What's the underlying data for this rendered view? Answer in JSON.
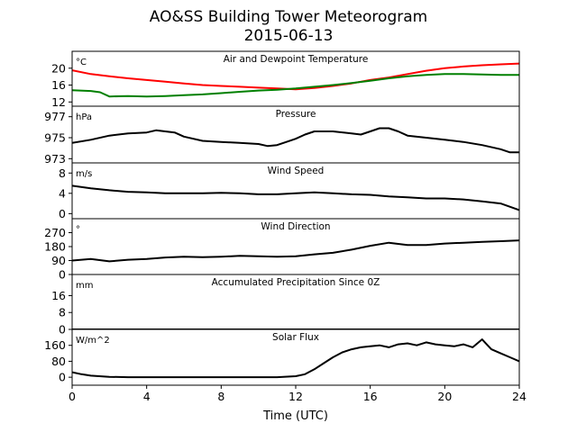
{
  "figure": {
    "title": "AO&SS Building Tower Meteorogram",
    "subtitle": "2015-06-13",
    "xlabel": "Time (UTC)"
  },
  "chart_data": [
    {
      "type": "line",
      "title": "Air and Dewpoint Temperature",
      "unit_label": "°C",
      "xlim": [
        0,
        24
      ],
      "ylim": [
        11,
        24
      ],
      "yticks": [
        12,
        16,
        20
      ],
      "colors": {
        "air": "#ff0000",
        "dewpoint": "#008000"
      },
      "series": [
        {
          "key": "air",
          "x": [
            0,
            1,
            2,
            3,
            4,
            5,
            6,
            7,
            8,
            9,
            10,
            11,
            12,
            13,
            14,
            15,
            16,
            17,
            18,
            19,
            20,
            21,
            22,
            23,
            24
          ],
          "y": [
            19.5,
            18.6,
            18.1,
            17.6,
            17.2,
            16.8,
            16.4,
            16.0,
            15.8,
            15.6,
            15.4,
            15.2,
            15.0,
            15.3,
            15.8,
            16.4,
            17.2,
            17.8,
            18.6,
            19.4,
            20.0,
            20.4,
            20.7,
            20.9,
            21.1
          ]
        },
        {
          "key": "dewpoint",
          "x": [
            0,
            1,
            1.5,
            2,
            3,
            4,
            5,
            6,
            7,
            8,
            9,
            10,
            11,
            12,
            13,
            14,
            15,
            16,
            17,
            18,
            19,
            20,
            21,
            22,
            23,
            24
          ],
          "y": [
            14.8,
            14.6,
            14.3,
            13.3,
            13.4,
            13.3,
            13.4,
            13.6,
            13.8,
            14.1,
            14.4,
            14.7,
            14.9,
            15.2,
            15.6,
            16.0,
            16.5,
            17.0,
            17.6,
            18.1,
            18.4,
            18.6,
            18.6,
            18.5,
            18.4,
            18.4
          ]
        }
      ]
    },
    {
      "type": "line",
      "title": "Pressure",
      "unit_label": "hPa",
      "xlim": [
        0,
        24
      ],
      "ylim": [
        972.6,
        978.0
      ],
      "yticks": [
        973,
        975,
        977
      ],
      "series": [
        {
          "key": "pressure",
          "x": [
            0,
            1,
            2,
            3,
            4,
            4.5,
            5,
            5.5,
            6,
            7,
            8,
            9,
            10,
            10.5,
            11,
            11.5,
            12,
            12.5,
            13,
            14,
            15,
            15.5,
            16,
            16.5,
            17,
            17.5,
            18,
            19,
            20,
            21,
            22,
            23,
            23.5,
            24
          ],
          "y": [
            974.5,
            974.8,
            975.2,
            975.4,
            975.5,
            975.7,
            975.6,
            975.5,
            975.1,
            974.7,
            974.6,
            974.5,
            974.4,
            974.2,
            974.3,
            974.6,
            974.9,
            975.3,
            975.6,
            975.6,
            975.4,
            975.3,
            975.6,
            975.9,
            975.9,
            975.6,
            975.2,
            975.0,
            974.8,
            974.6,
            974.3,
            973.9,
            973.6,
            973.6
          ]
        }
      ]
    },
    {
      "type": "line",
      "title": "Wind Speed",
      "unit_label": "m/s",
      "xlim": [
        0,
        24
      ],
      "ylim": [
        -1,
        10
      ],
      "yticks": [
        0,
        4,
        8
      ],
      "series": [
        {
          "key": "wind_speed",
          "x": [
            0,
            1,
            2,
            3,
            4,
            5,
            6,
            7,
            8,
            9,
            10,
            11,
            12,
            13,
            14,
            15,
            16,
            17,
            18,
            19,
            20,
            21,
            22,
            23,
            24
          ],
          "y": [
            5.5,
            5.0,
            4.6,
            4.3,
            4.2,
            4.0,
            4.0,
            4.0,
            4.1,
            4.0,
            3.8,
            3.8,
            4.0,
            4.2,
            4.0,
            3.8,
            3.7,
            3.4,
            3.2,
            3.0,
            3.0,
            2.8,
            2.4,
            2.0,
            0.7
          ]
        }
      ]
    },
    {
      "type": "line",
      "title": "Wind Direction",
      "unit_label": "°",
      "xlim": [
        0,
        24
      ],
      "ylim": [
        0,
        360
      ],
      "yticks": [
        0,
        90,
        180,
        270
      ],
      "series": [
        {
          "key": "wind_direction",
          "x": [
            0,
            1,
            2,
            3,
            4,
            5,
            6,
            7,
            8,
            9,
            10,
            11,
            12,
            13,
            14,
            15,
            16,
            17,
            18,
            19,
            20,
            21,
            22,
            23,
            24
          ],
          "y": [
            90,
            100,
            85,
            95,
            100,
            110,
            115,
            112,
            115,
            120,
            118,
            115,
            118,
            130,
            140,
            160,
            185,
            205,
            190,
            190,
            200,
            205,
            210,
            215,
            220
          ]
        }
      ]
    },
    {
      "type": "line",
      "title": "Accumulated Precipitation Since 0Z",
      "unit_label": "mm",
      "xlim": [
        0,
        24
      ],
      "ylim": [
        0,
        26
      ],
      "yticks": [
        0,
        8,
        16
      ],
      "series": [
        {
          "key": "precip",
          "x": [
            0,
            24
          ],
          "y": [
            0,
            0
          ]
        }
      ]
    },
    {
      "type": "line",
      "title": "Solar Flux",
      "unit_label": "W/m^2",
      "xlim": [
        0,
        24
      ],
      "ylim": [
        -40,
        240
      ],
      "yticks": [
        0,
        80,
        160
      ],
      "series": [
        {
          "key": "solar",
          "x": [
            0,
            0.5,
            1,
            2,
            3,
            4,
            5,
            6,
            7,
            8,
            9,
            10,
            11,
            12,
            12.5,
            13,
            13.5,
            14,
            14.5,
            15,
            15.5,
            16,
            16.5,
            17,
            17.5,
            18,
            18.5,
            19,
            19.5,
            20,
            20.5,
            21,
            21.5,
            22,
            22.5,
            23,
            23.5,
            24
          ],
          "y": [
            25,
            15,
            8,
            2,
            0,
            0,
            0,
            0,
            0,
            0,
            0,
            0,
            0,
            5,
            15,
            40,
            70,
            100,
            125,
            140,
            150,
            155,
            160,
            150,
            165,
            170,
            160,
            175,
            165,
            160,
            155,
            165,
            150,
            190,
            140,
            120,
            100,
            80
          ]
        }
      ]
    }
  ]
}
